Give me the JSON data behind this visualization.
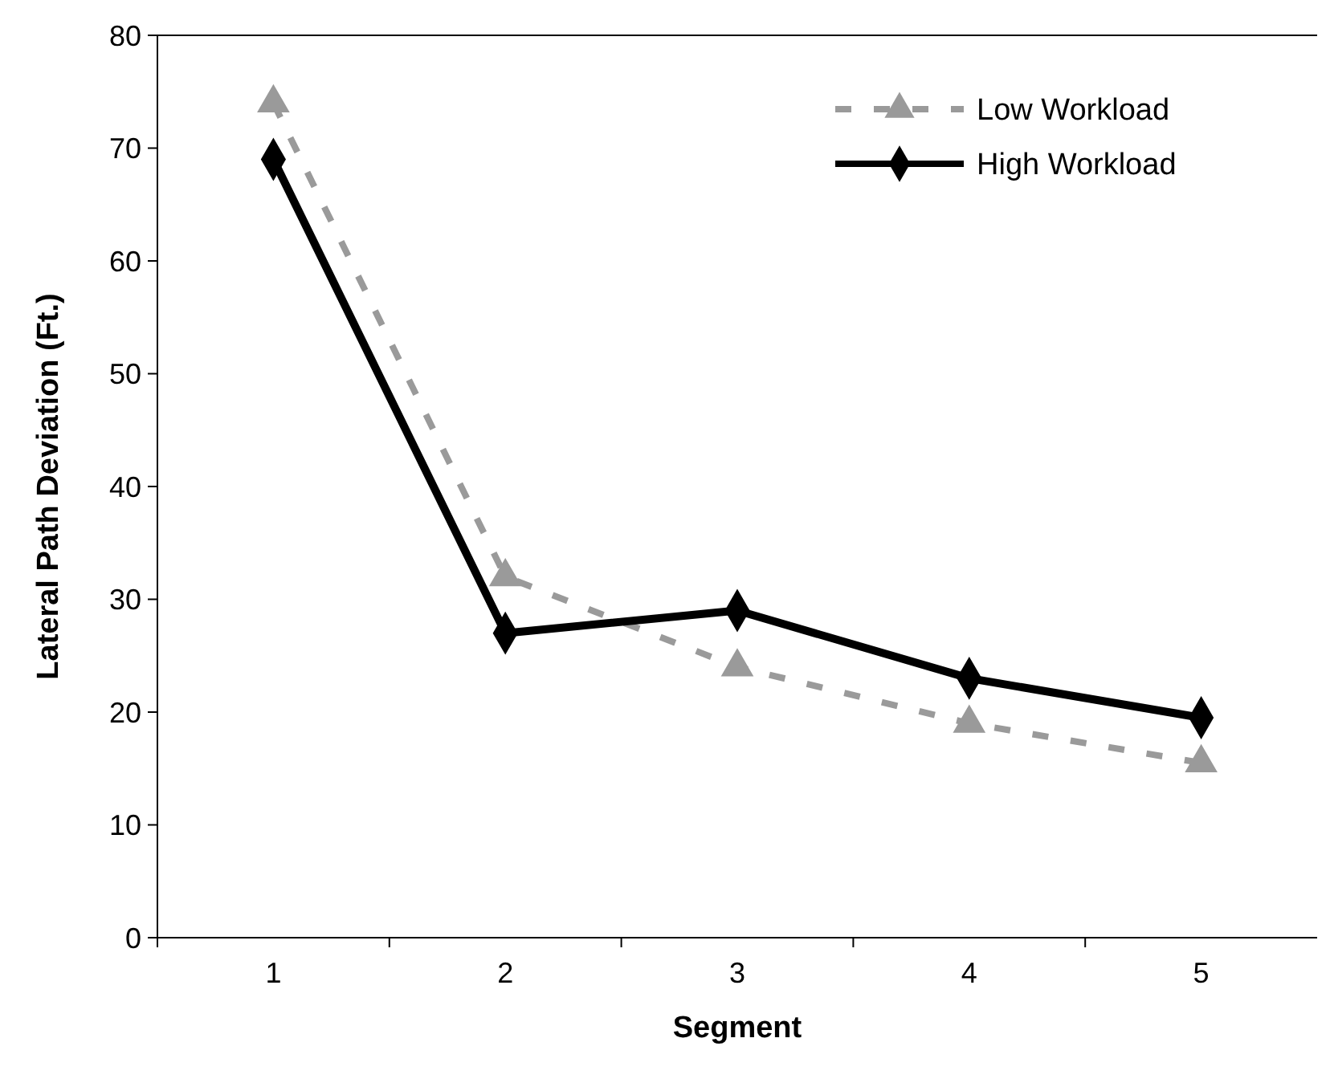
{
  "chart_data": {
    "type": "line",
    "xlabel": "Segment",
    "ylabel": "Lateral Path Deviation (Ft.)",
    "categories": [
      "1",
      "2",
      "3",
      "4",
      "5"
    ],
    "ylim": [
      0,
      80
    ],
    "yticks": [
      0,
      10,
      20,
      30,
      40,
      50,
      60,
      70,
      80
    ],
    "legend": "top right",
    "grid": false,
    "series": [
      {
        "name": "Low Workload",
        "color": "#9a9a9a",
        "marker": "triangle",
        "line_style": "dashed",
        "values": [
          74,
          32,
          24,
          19,
          15.5
        ]
      },
      {
        "name": "High Workload",
        "color": "#000000",
        "marker": "diamond",
        "line_style": "solid",
        "values": [
          69,
          27,
          29,
          23,
          19.5
        ]
      }
    ]
  }
}
